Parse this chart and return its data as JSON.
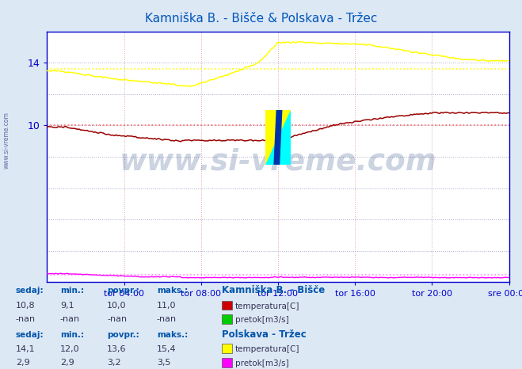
{
  "title": "Kamniška B. - Bišče & Polskava - Tržec",
  "title_color": "#0055bb",
  "bg_color": "#dde8f5",
  "plot_bg_color": "#ffffff",
  "axis_color": "#0000cc",
  "text_color": "#0055aa",
  "n_points": 288,
  "xlim": [
    0,
    1440
  ],
  "ylim": [
    0,
    16
  ],
  "xtick_positions": [
    240,
    480,
    720,
    960,
    1200,
    1440
  ],
  "xtick_labels": [
    "tor 04:00",
    "tor 08:00",
    "tor 12:00",
    "tor 16:00",
    "tor 20:00",
    "sre 00:00"
  ],
  "hline_red_y": 10.0,
  "hline_yellow_y": 13.6,
  "hline_pink_y": 0.5,
  "temp1_color": "#990000",
  "temp2_color": "#ffff00",
  "flow2_color": "#ff00ff",
  "watermark_text": "www.si-vreme.com",
  "watermark_color": "#1a3a7a",
  "watermark_alpha": 0.22,
  "station1_name": "Kamniška B. - Bišče",
  "station2_name": "Polskava - Tržec",
  "sedaj1": "10,8",
  "min1": "9,1",
  "povpr1": "10,0",
  "maks1": "11,0",
  "sedaj1_flow": "-nan",
  "min1_flow": "-nan",
  "povpr1_flow": "-nan",
  "maks1_flow": "-nan",
  "sedaj2": "14,1",
  "min2": "12,0",
  "povpr2": "13,6",
  "maks2": "15,4",
  "sedaj2_flow": "2,9",
  "min2_flow": "2,9",
  "povpr2_flow": "3,2",
  "maks2_flow": "3,5"
}
